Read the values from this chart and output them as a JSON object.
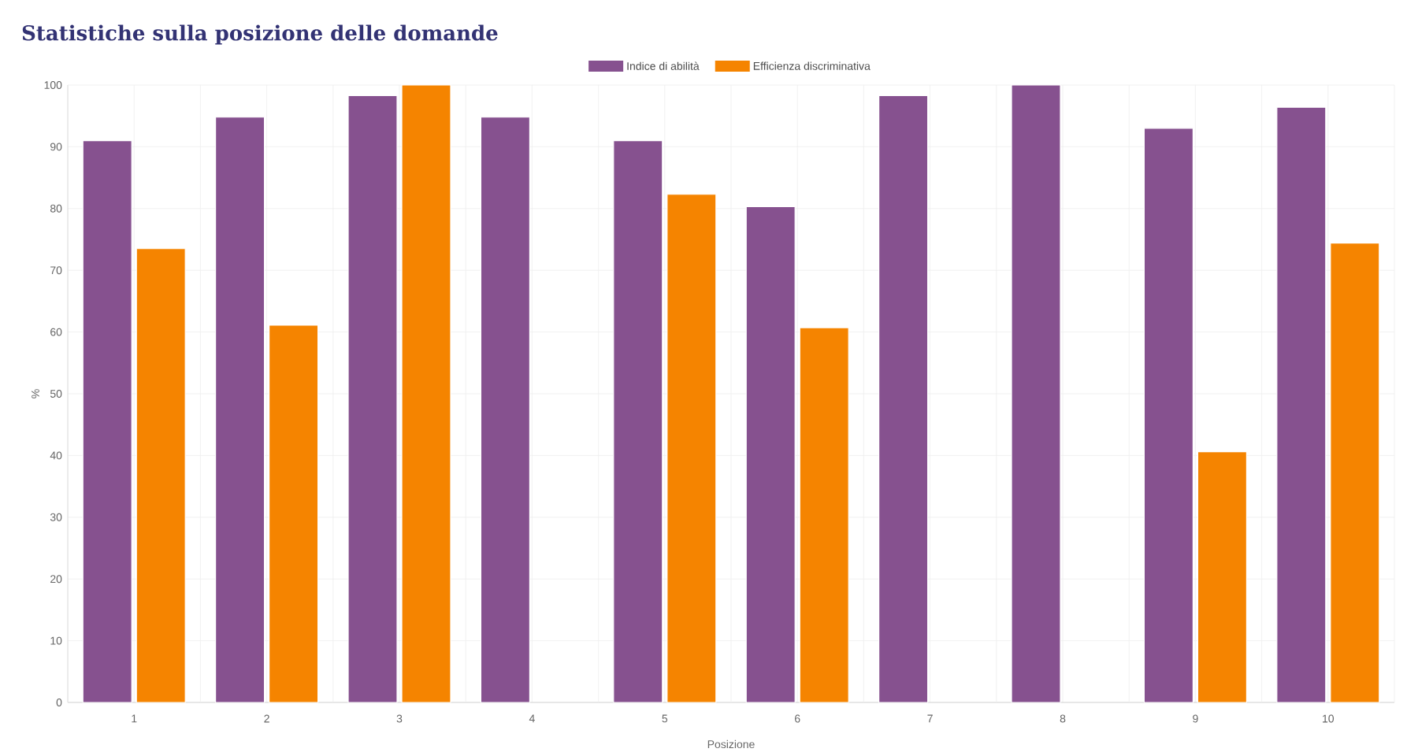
{
  "chart_data": {
    "type": "bar",
    "title": "Statistiche sulla posizione delle domande",
    "xlabel": "Posizione",
    "ylabel": "%",
    "categories": [
      "1",
      "2",
      "3",
      "4",
      "5",
      "6",
      "7",
      "8",
      "9",
      "10"
    ],
    "series": [
      {
        "name": "Indice di abilità",
        "color": "#86518f",
        "values": [
          91.0,
          94.8,
          98.3,
          94.8,
          91.0,
          80.3,
          98.3,
          100,
          93.0,
          96.4
        ]
      },
      {
        "name": "Efficienza discriminativa",
        "color": "#f58400",
        "values": [
          73.5,
          61.1,
          100,
          null,
          82.3,
          60.7,
          null,
          null,
          40.6,
          74.4
        ]
      }
    ],
    "ylim": [
      0,
      100
    ],
    "yticks": [
      0,
      10,
      20,
      30,
      40,
      50,
      60,
      70,
      80,
      90,
      100
    ],
    "grid": true,
    "legend": "top"
  }
}
